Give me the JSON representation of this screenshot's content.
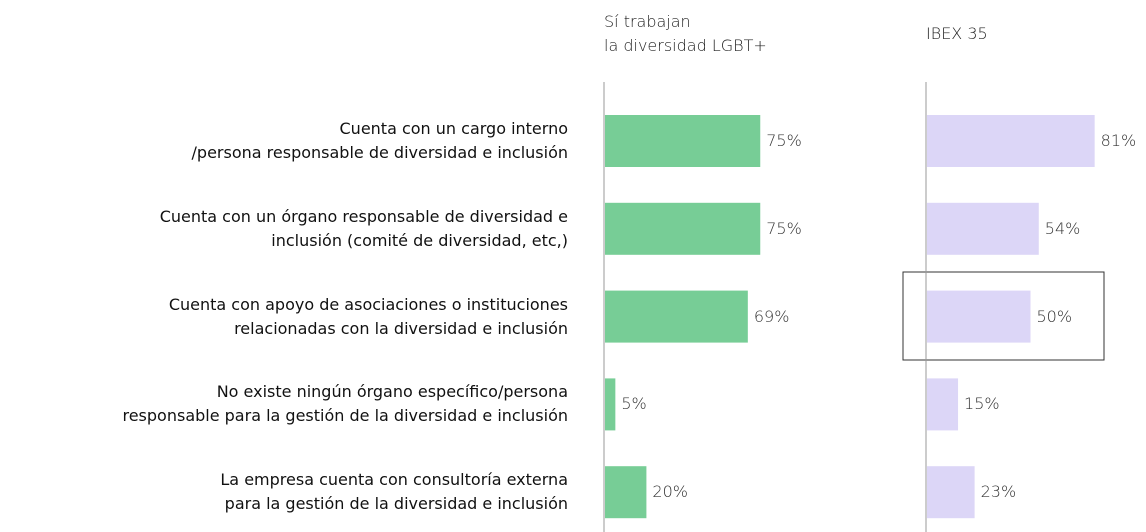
{
  "chart_data": {
    "type": "bar",
    "orientation": "horizontal",
    "categories": [
      "Cuenta con un cargo interno\n/persona responsable de diversidad e inclusión",
      "Cuenta con un órgano responsable de diversidad e\ninclusión (comité de diversidad, etc,)",
      "Cuenta con apoyo de asociaciones o instituciones\nrelacionadas con la diversidad e inclusión",
      "No existe ningún órgano específico/persona\nresponsable para la gestión de la diversidad e inclusión",
      "La empresa cuenta con consultoría externa\npara la gestión de la diversidad e inclusión"
    ],
    "series": [
      {
        "name": "Sí trabajan\nla diversidad LGBT+",
        "color": "#77cd96",
        "values": [
          75,
          75,
          69,
          5,
          20
        ],
        "value_labels": [
          "75%",
          "75%",
          "69%",
          "5%",
          "20%"
        ]
      },
      {
        "name": "IBEX 35",
        "color": "#dcd6f7",
        "values": [
          81,
          54,
          50,
          15,
          23
        ],
        "value_labels": [
          "81%",
          "54%",
          "50%",
          "15%",
          "23%"
        ]
      }
    ]
  }
}
